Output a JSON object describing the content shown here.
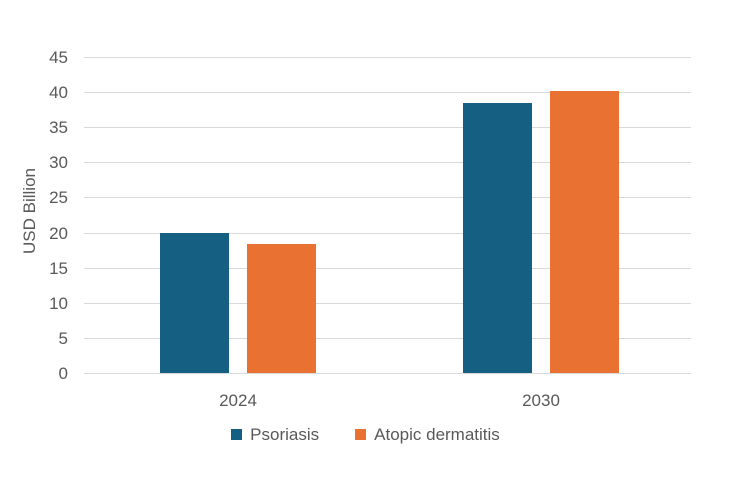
{
  "chart_data": {
    "type": "bar",
    "categories": [
      "2024",
      "2030"
    ],
    "series": [
      {
        "name": "Psoriasis",
        "color": "#156082",
        "values": [
          20.0,
          38.5
        ]
      },
      {
        "name": "Atopic dermatitis",
        "color": "#E97132",
        "values": [
          18.3,
          40.2
        ]
      }
    ],
    "title": "",
    "xlabel": "",
    "ylabel": "USD Billion",
    "ylim": [
      0,
      45
    ],
    "yticks": [
      0,
      5,
      10,
      15,
      20,
      25,
      30,
      35,
      40,
      45
    ],
    "grid": true,
    "legend_position": "bottom"
  },
  "colors": {
    "background": "#FFFFFF",
    "gridline": "#D9D9D9",
    "axis_text": "#595959",
    "series_blue": "#156082",
    "series_orange": "#E97132"
  }
}
